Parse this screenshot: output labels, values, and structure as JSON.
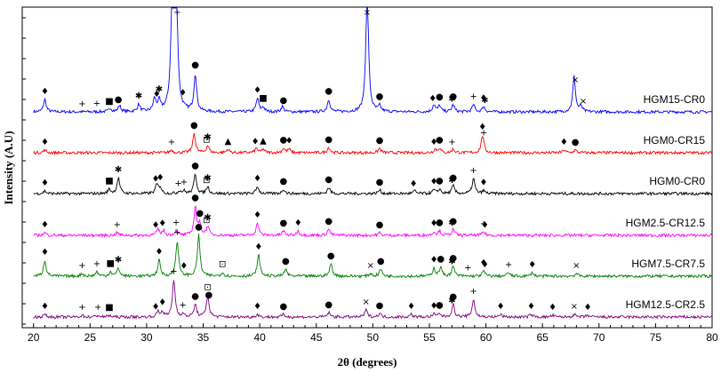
{
  "chart_data": {
    "type": "line",
    "xlabel": "2θ (degrees)",
    "ylabel": "Intensity (A.U)",
    "xlim": [
      19,
      80
    ],
    "xticks": [
      20,
      25,
      30,
      35,
      40,
      45,
      50,
      55,
      60,
      65,
      70,
      75,
      80
    ],
    "grid": false,
    "series": [
      {
        "name": "HGM15-CR0",
        "color": "#0000ff",
        "baseline": 126,
        "peaks": [
          [
            21.0,
            14
          ],
          [
            26.8,
            4
          ],
          [
            27.6,
            7
          ],
          [
            29.3,
            8
          ],
          [
            30.7,
            14
          ],
          [
            31.1,
            11
          ],
          [
            32.3,
            170
          ],
          [
            32.6,
            150
          ],
          [
            34.3,
            42
          ],
          [
            39.8,
            15
          ],
          [
            40.3,
            5
          ],
          [
            42.0,
            6
          ],
          [
            46.1,
            14
          ],
          [
            50.6,
            6
          ],
          [
            55.4,
            8
          ],
          [
            55.9,
            7
          ],
          [
            57.1,
            8
          ],
          [
            58.9,
            8
          ],
          [
            59.8,
            6
          ],
          [
            49.5,
            140
          ],
          [
            67.8,
            40
          ],
          [
            68.4,
            6
          ]
        ],
        "markers": [
          [
            21.0,
            "diamond"
          ],
          [
            24.3,
            "plus"
          ],
          [
            25.6,
            "plus"
          ],
          [
            26.7,
            "square"
          ],
          [
            27.5,
            "circle"
          ],
          [
            29.3,
            "star"
          ],
          [
            30.9,
            "diamond"
          ],
          [
            31.1,
            "star"
          ],
          [
            32.7,
            "plus"
          ],
          [
            33.2,
            "diamond"
          ],
          [
            34.3,
            "circle"
          ],
          [
            39.8,
            "diamond"
          ],
          [
            40.3,
            "square"
          ],
          [
            42.1,
            "circle"
          ],
          [
            46.1,
            "circle"
          ],
          [
            49.5,
            "cross"
          ],
          [
            50.6,
            "circle"
          ],
          [
            55.3,
            "diamond"
          ],
          [
            55.9,
            "circle"
          ],
          [
            57.0,
            "star"
          ],
          [
            57.1,
            "circle"
          ],
          [
            58.9,
            "plus"
          ],
          [
            59.8,
            "diamond"
          ],
          [
            59.9,
            "star"
          ],
          [
            67.9,
            "cross"
          ],
          [
            68.6,
            "cross"
          ]
        ]
      },
      {
        "name": "HGM0-CR15",
        "color": "#ff0000",
        "baseline": 172,
        "peaks": [
          [
            21.0,
            3
          ],
          [
            32.2,
            3
          ],
          [
            34.2,
            22
          ],
          [
            35.4,
            8
          ],
          [
            37.2,
            4
          ],
          [
            39.7,
            5
          ],
          [
            40.3,
            4
          ],
          [
            42.1,
            5
          ],
          [
            42.6,
            4
          ],
          [
            46.1,
            6
          ],
          [
            50.6,
            5
          ],
          [
            55.5,
            4
          ],
          [
            55.9,
            5
          ],
          [
            57.1,
            4
          ],
          [
            59.7,
            20
          ],
          [
            66.9,
            3
          ],
          [
            67.9,
            3
          ]
        ],
        "markers": [
          [
            21.0,
            "diamond"
          ],
          [
            32.2,
            "plus"
          ],
          [
            34.2,
            "circle"
          ],
          [
            35.3,
            "squarebox"
          ],
          [
            35.4,
            "star"
          ],
          [
            37.2,
            "triangle"
          ],
          [
            39.6,
            "diamond"
          ],
          [
            40.3,
            "triangle"
          ],
          [
            42.1,
            "circle"
          ],
          [
            42.6,
            "diamond"
          ],
          [
            46.1,
            "circle"
          ],
          [
            50.6,
            "circle"
          ],
          [
            55.4,
            "diamond"
          ],
          [
            55.9,
            "circle"
          ],
          [
            57.0,
            "plus"
          ],
          [
            59.7,
            "diamond"
          ],
          [
            59.8,
            "plus"
          ],
          [
            66.9,
            "diamond"
          ],
          [
            67.9,
            "circle"
          ]
        ]
      },
      {
        "name": "HGM0-CR0",
        "color": "#000000",
        "baseline": 218,
        "peaks": [
          [
            21.0,
            3
          ],
          [
            26.7,
            5
          ],
          [
            27.5,
            18
          ],
          [
            30.9,
            10
          ],
          [
            31.2,
            7
          ],
          [
            32.9,
            3
          ],
          [
            33.3,
            3
          ],
          [
            34.3,
            22
          ],
          [
            35.4,
            8
          ],
          [
            39.8,
            8
          ],
          [
            42.1,
            5
          ],
          [
            46.1,
            7
          ],
          [
            50.6,
            4
          ],
          [
            53.7,
            3
          ],
          [
            55.4,
            4
          ],
          [
            55.9,
            5
          ],
          [
            57.1,
            9
          ],
          [
            58.9,
            17
          ],
          [
            59.8,
            3
          ]
        ],
        "markers": [
          [
            21.0,
            "diamond"
          ],
          [
            26.7,
            "square"
          ],
          [
            27.5,
            "star"
          ],
          [
            30.8,
            "diamond"
          ],
          [
            31.2,
            "diamond"
          ],
          [
            32.8,
            "plus"
          ],
          [
            33.3,
            "plus"
          ],
          [
            34.3,
            "circle"
          ],
          [
            35.3,
            "squarebox"
          ],
          [
            35.4,
            "star"
          ],
          [
            39.8,
            "diamond"
          ],
          [
            42.1,
            "circle"
          ],
          [
            46.1,
            "circle"
          ],
          [
            50.6,
            "circle"
          ],
          [
            53.6,
            "diamond"
          ],
          [
            55.4,
            "diamond"
          ],
          [
            55.9,
            "circle"
          ],
          [
            57.0,
            "star"
          ],
          [
            57.1,
            "circle"
          ],
          [
            58.9,
            "plus"
          ],
          [
            59.8,
            "diamond"
          ]
        ]
      },
      {
        "name": "HGM2.5-CR12.5",
        "color": "#ff00ff",
        "baseline": 265,
        "peaks": [
          [
            21.0,
            3
          ],
          [
            27.4,
            3
          ],
          [
            31.0,
            7
          ],
          [
            31.5,
            5
          ],
          [
            32.6,
            5
          ],
          [
            34.3,
            32
          ],
          [
            34.7,
            12
          ],
          [
            35.4,
            10
          ],
          [
            39.8,
            14
          ],
          [
            42.1,
            5
          ],
          [
            43.4,
            5
          ],
          [
            46.1,
            7
          ],
          [
            50.6,
            3
          ],
          [
            55.4,
            4
          ],
          [
            55.9,
            5
          ],
          [
            57.1,
            7
          ],
          [
            59.8,
            4
          ]
        ],
        "markers": [
          [
            21.0,
            "diamond"
          ],
          [
            27.4,
            "plus"
          ],
          [
            30.8,
            "diamond"
          ],
          [
            31.4,
            "diamond"
          ],
          [
            32.6,
            "plus"
          ],
          [
            34.3,
            "circle"
          ],
          [
            34.7,
            "circle"
          ],
          [
            35.3,
            "squarebox"
          ],
          [
            35.4,
            "star"
          ],
          [
            39.8,
            "diamond"
          ],
          [
            42.1,
            "circle"
          ],
          [
            43.4,
            "diamond"
          ],
          [
            46.1,
            "circle"
          ],
          [
            50.6,
            "circle"
          ],
          [
            55.4,
            "diamond"
          ],
          [
            55.9,
            "circle"
          ],
          [
            57.0,
            "star"
          ],
          [
            57.1,
            "circle"
          ],
          [
            59.8,
            "plus"
          ],
          [
            59.9,
            "diamond"
          ]
        ]
      },
      {
        "name": "HGM7.5-CR7.5",
        "color": "#008000",
        "baseline": 311,
        "peaks": [
          [
            21.0,
            18
          ],
          [
            24.3,
            3
          ],
          [
            25.6,
            5
          ],
          [
            26.8,
            5
          ],
          [
            27.5,
            9
          ],
          [
            31.1,
            18
          ],
          [
            32.7,
            40
          ],
          [
            34.6,
            46
          ],
          [
            36.7,
            4
          ],
          [
            39.9,
            24
          ],
          [
            42.3,
            8
          ],
          [
            46.3,
            14
          ],
          [
            49.8,
            3
          ],
          [
            50.7,
            8
          ],
          [
            55.4,
            9
          ],
          [
            56.0,
            10
          ],
          [
            57.1,
            11
          ],
          [
            59.8,
            6
          ],
          [
            62.0,
            4
          ],
          [
            64.1,
            4
          ],
          [
            68.0,
            3
          ]
        ],
        "markers": [
          [
            21.0,
            "diamond"
          ],
          [
            24.3,
            "plus"
          ],
          [
            25.6,
            "plus"
          ],
          [
            26.8,
            "square"
          ],
          [
            27.5,
            "star"
          ],
          [
            31.1,
            "diamond"
          ],
          [
            32.7,
            "plus"
          ],
          [
            33.3,
            "diamond"
          ],
          [
            34.6,
            "circle"
          ],
          [
            36.7,
            "squarebox"
          ],
          [
            39.9,
            "diamond"
          ],
          [
            42.3,
            "circle"
          ],
          [
            46.3,
            "circle"
          ],
          [
            49.8,
            "cross"
          ],
          [
            50.7,
            "circle"
          ],
          [
            55.4,
            "diamond"
          ],
          [
            56.0,
            "circle"
          ],
          [
            57.0,
            "star"
          ],
          [
            57.1,
            "circle"
          ],
          [
            58.4,
            "plus"
          ],
          [
            59.8,
            "diamond"
          ],
          [
            59.9,
            "diamond"
          ],
          [
            62.0,
            "plus"
          ],
          [
            64.1,
            "diamond"
          ],
          [
            68.0,
            "cross"
          ]
        ]
      },
      {
        "name": "HGM12.5-CR2.5",
        "color": "#800080",
        "baseline": 357,
        "peaks": [
          [
            21.0,
            3
          ],
          [
            24.3,
            2
          ],
          [
            25.7,
            2
          ],
          [
            26.7,
            2
          ],
          [
            31.0,
            6
          ],
          [
            31.4,
            6
          ],
          [
            32.4,
            42
          ],
          [
            33.2,
            3
          ],
          [
            34.3,
            14
          ],
          [
            35.4,
            24
          ],
          [
            39.8,
            3
          ],
          [
            42.1,
            3
          ],
          [
            46.1,
            5
          ],
          [
            49.4,
            8
          ],
          [
            50.6,
            4
          ],
          [
            53.4,
            3
          ],
          [
            55.4,
            3
          ],
          [
            55.9,
            4
          ],
          [
            57.1,
            14
          ],
          [
            58.9,
            20
          ],
          [
            61.3,
            3
          ],
          [
            64.0,
            3
          ],
          [
            65.9,
            2
          ],
          [
            67.8,
            3
          ],
          [
            69.0,
            2
          ]
        ],
        "markers": [
          [
            21.0,
            "diamond"
          ],
          [
            24.3,
            "plus"
          ],
          [
            25.7,
            "plus"
          ],
          [
            26.7,
            "square"
          ],
          [
            30.8,
            "diamond"
          ],
          [
            31.4,
            "diamond"
          ],
          [
            32.4,
            "plus"
          ],
          [
            33.2,
            "plus"
          ],
          [
            34.3,
            "circle"
          ],
          [
            35.4,
            "squarebox"
          ],
          [
            35.5,
            "circle"
          ],
          [
            39.8,
            "diamond"
          ],
          [
            42.1,
            "circle"
          ],
          [
            46.1,
            "circle"
          ],
          [
            49.4,
            "cross"
          ],
          [
            50.6,
            "circle"
          ],
          [
            53.4,
            "diamond"
          ],
          [
            55.4,
            "diamond"
          ],
          [
            55.9,
            "circle"
          ],
          [
            57.0,
            "star"
          ],
          [
            57.1,
            "circle"
          ],
          [
            58.9,
            "plus"
          ],
          [
            61.3,
            "diamond"
          ],
          [
            64.0,
            "diamond"
          ],
          [
            65.9,
            "diamond"
          ],
          [
            67.8,
            "cross"
          ],
          [
            69.0,
            "diamond"
          ]
        ]
      }
    ]
  }
}
